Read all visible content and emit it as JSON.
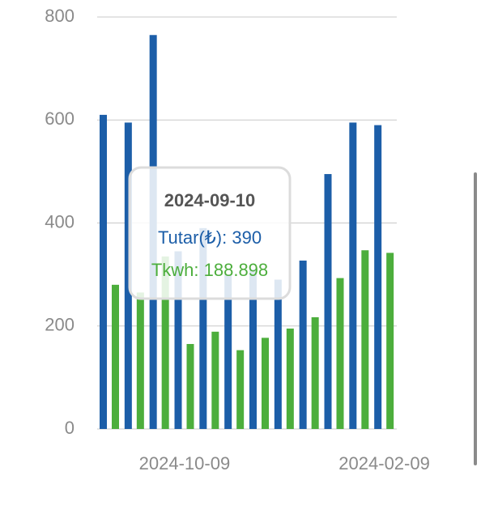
{
  "chart_data": {
    "type": "bar",
    "categories": [
      null,
      null,
      null,
      "2024-10-09",
      null,
      null,
      null,
      null,
      null,
      null,
      null,
      "2024-02-09"
    ],
    "series": [
      {
        "color": "#1c5ea8",
        "values": [
          610,
          595,
          765,
          345,
          390,
          300,
          310,
          290,
          327,
          495,
          595,
          590
        ]
      },
      {
        "color": "#4cae3c",
        "values": [
          280,
          265,
          335,
          165,
          188.898,
          153,
          177,
          195,
          217,
          293,
          347,
          342
        ]
      }
    ],
    "ylim": [
      0,
      800
    ],
    "yticks": [
      0,
      200,
      400,
      600,
      800
    ],
    "grid": true,
    "tooltip": {
      "title": "2024-09-10",
      "lines": [
        "Tutar(₺): 390",
        "Tkwh: 188.898"
      ]
    }
  }
}
